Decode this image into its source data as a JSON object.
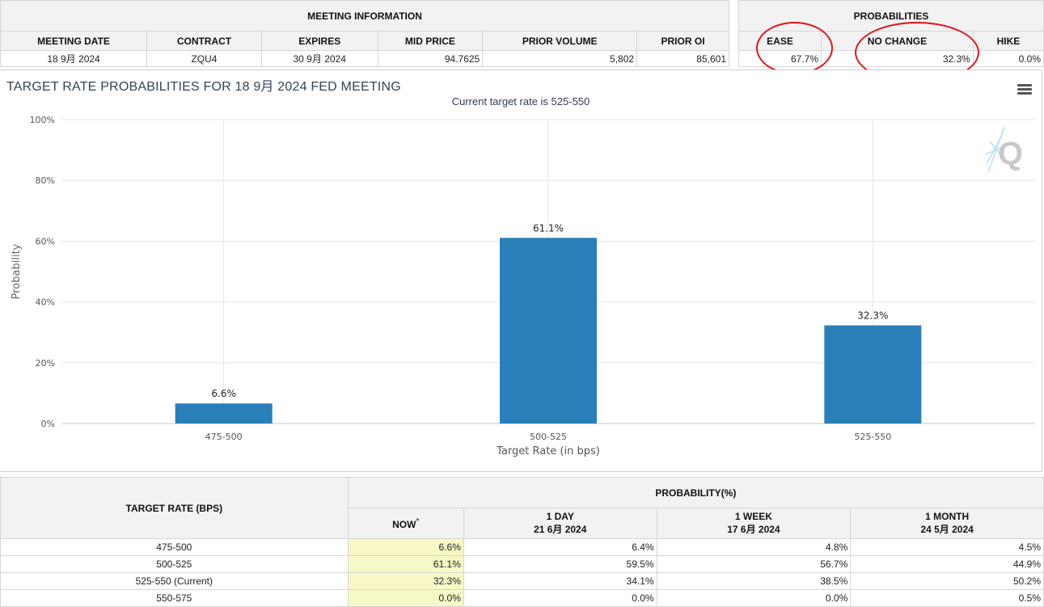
{
  "meeting": {
    "section_title": "MEETING INFORMATION",
    "columns": [
      "MEETING DATE",
      "CONTRACT",
      "EXPIRES",
      "MID PRICE",
      "PRIOR VOLUME",
      "PRIOR OI"
    ],
    "values": [
      "18 9月 2024",
      "ZQU4",
      "30 9月 2024",
      "94.7625",
      "5,802",
      "85,601"
    ]
  },
  "probabilities": {
    "section_title": "PROBABILITIES",
    "columns": [
      "EASE",
      "NO CHANGE",
      "HIKE"
    ],
    "values": [
      "67.7%",
      "32.3%",
      "0.0%"
    ],
    "annotation_color": "#e0141e"
  },
  "chart": {
    "title": "TARGET RATE PROBABILITIES FOR 18 9月 2024 FED MEETING",
    "subtitle": "Current target rate is 525-550",
    "watermark": "Q"
  },
  "chart_data": {
    "type": "bar",
    "categories": [
      "475-500",
      "500-525",
      "525-550"
    ],
    "values": [
      6.6,
      61.1,
      32.3
    ],
    "data_labels": [
      "6.6%",
      "61.1%",
      "32.3%"
    ],
    "xlabel": "Target Rate (in bps)",
    "ylabel": "Probability",
    "ylim": [
      0,
      100
    ],
    "yticks": [
      "0%",
      "20%",
      "40%",
      "60%",
      "80%",
      "100%"
    ],
    "grid": true,
    "bar_color": "#2980b9"
  },
  "history": {
    "row_header": "TARGET RATE (BPS)",
    "group_header": "PROBABILITY(%)",
    "columns": [
      {
        "label": "NOW",
        "sup": "*",
        "date": ""
      },
      {
        "label": "1 DAY",
        "date": "21 6月 2024"
      },
      {
        "label": "1 WEEK",
        "date": "17 6月 2024"
      },
      {
        "label": "1 MONTH",
        "date": "24 5月 2024"
      }
    ],
    "rows": [
      {
        "rate": "475-500",
        "values": [
          "6.6%",
          "6.4%",
          "4.8%",
          "4.5%"
        ]
      },
      {
        "rate": "500-525",
        "values": [
          "61.1%",
          "59.5%",
          "56.7%",
          "44.9%"
        ]
      },
      {
        "rate": "525-550 (Current)",
        "values": [
          "32.3%",
          "34.1%",
          "38.5%",
          "50.2%"
        ]
      },
      {
        "rate": "550-575",
        "values": [
          "0.0%",
          "0.0%",
          "0.0%",
          "0.5%"
        ]
      }
    ]
  }
}
